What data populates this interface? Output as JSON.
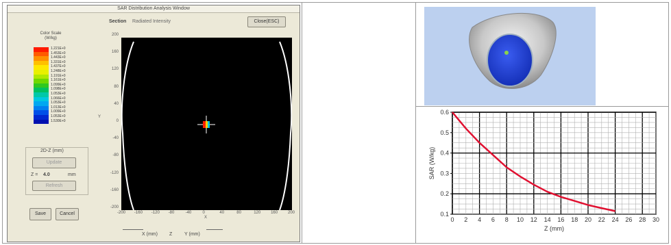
{
  "left_window": {
    "title": "SAR Distribution Analysis Window",
    "section_label": "Section",
    "section_value": "Radiated Intensity",
    "close_button": "Close(ESC)",
    "legend_title": "Color Scale (W/kg)",
    "legend_values": [
      "1.221E+0",
      "1.453E+0",
      "1.443E+0",
      "1.331E+0",
      "1.437E+0",
      "1.248E+0",
      "1.191E+0",
      "1.161E+0",
      "1.099E+0",
      "1.098E+0",
      "1.053E+0",
      "1.066E+0",
      "1.053E+0",
      "1.013E+0",
      "1.009E+0",
      "1.053E+0",
      "1.530E+0"
    ],
    "legend_colors": [
      "#ff1a00",
      "#ff5a00",
      "#ff9000",
      "#ffc000",
      "#ffe800",
      "#e8f000",
      "#b0e800",
      "#70d800",
      "#30c820",
      "#00c060",
      "#00c8a8",
      "#00c8e0",
      "#00a8f0",
      "#0080f0",
      "#0050e8",
      "#0028d0",
      "#0010b0"
    ],
    "group_label": "2D-Z (mm)",
    "group_button": "Update",
    "z_prefix": "Z =",
    "z_value": "4.0",
    "z_unit": "mm",
    "secondary_button": "Refresh",
    "save_button": "Save",
    "cancel_button": "Cancel",
    "y_axis_ticks": [
      "200",
      "160",
      "120",
      "80",
      "40",
      "0",
      "-40",
      "-80",
      "-120",
      "-160",
      "-200"
    ],
    "y_axis_label": "Y",
    "x_axis_ticks": [
      "-200",
      "-160",
      "-120",
      "-80",
      "-40",
      "0",
      "40",
      "80",
      "120",
      "160",
      "200"
    ],
    "x_axis_label": "X",
    "bottom_x_label": "X (mm)",
    "bottom_z_label": "Z",
    "bottom_y_label": "Y (mm)"
  },
  "chart_data": {
    "type": "line",
    "xlabel": "Z (mm)",
    "ylabel": "SAR (W/kg)",
    "xlim": [
      0,
      30
    ],
    "ylim": [
      0.1,
      0.6
    ],
    "x_ticks": [
      "0",
      "2",
      "4",
      "6",
      "8",
      "10",
      "12",
      "14",
      "16",
      "18",
      "20",
      "22",
      "24",
      "26",
      "28",
      "30"
    ],
    "y_ticks": [
      "0.1",
      "0.2",
      "0.3",
      "0.4",
      "0.5",
      "0.6"
    ],
    "grid": true,
    "line_color": "#e01030",
    "series": [
      {
        "x": [
          0,
          2,
          4,
          6,
          8,
          10,
          12,
          14,
          16,
          18,
          20,
          22,
          24
        ],
        "y": [
          0.6,
          0.52,
          0.45,
          0.39,
          0.33,
          0.285,
          0.245,
          0.21,
          0.185,
          0.165,
          0.145,
          0.13,
          0.115
        ]
      }
    ]
  },
  "colors": {
    "window_bg": "#ece9d8",
    "plot_bg": "#000000",
    "view_bg": "#bcd0ef",
    "sphere_blue": "#1d3fd8"
  }
}
